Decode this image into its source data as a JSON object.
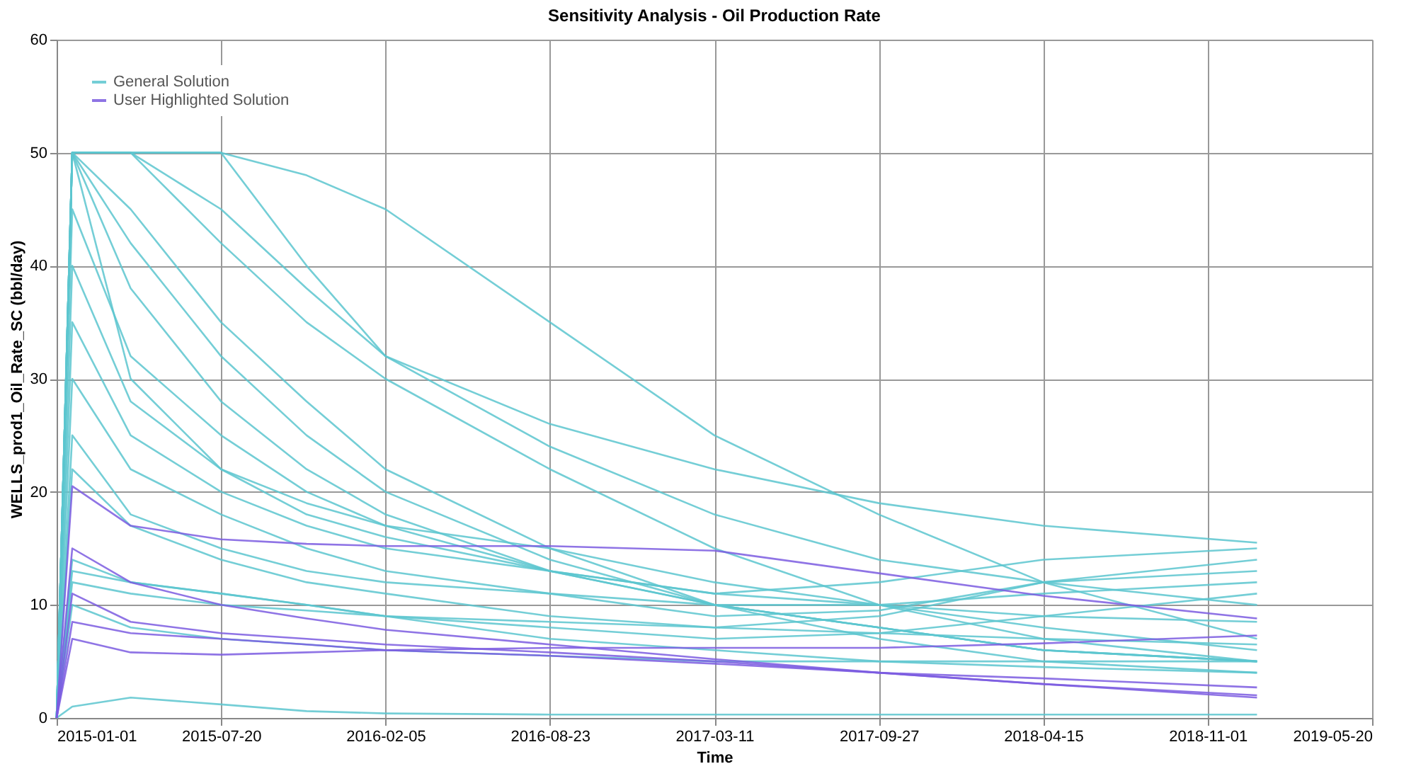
{
  "chart_data": {
    "type": "line",
    "title": "Sensitivity Analysis - Oil Production Rate",
    "xlabel": "Time",
    "ylabel": "WELLS_prod1_Oil_Rate_SC (bbl/day)",
    "x": [
      "2015-01-01",
      "2015-01-20",
      "2015-04-01",
      "2015-07-20",
      "2015-11-01",
      "2016-02-05",
      "2016-08-23",
      "2017-03-11",
      "2017-09-27",
      "2018-04-15",
      "2018-12-31"
    ],
    "xlim": [
      "2015-01-01",
      "2019-05-20"
    ],
    "xticks": [
      "2015-01-01",
      "2015-07-20",
      "2016-02-05",
      "2016-08-23",
      "2017-03-11",
      "2017-09-27",
      "2018-04-15",
      "2018-11-01",
      "2019-05-20"
    ],
    "ylim": [
      0,
      60
    ],
    "yticks": [
      0,
      10,
      20,
      30,
      40,
      50,
      60
    ],
    "grid": true,
    "legend": "top left",
    "marker": "none",
    "line_style": "solid",
    "series": [
      {
        "name": "General Solution",
        "color": "#5cc6cf",
        "values": [
          0,
          50,
          50,
          50,
          48,
          45,
          35,
          25,
          18,
          12,
          7
        ]
      },
      {
        "color": "#5cc6cf",
        "values": [
          0,
          50,
          50,
          42,
          35,
          30,
          22,
          15,
          10,
          7,
          5
        ]
      },
      {
        "color": "#5cc6cf",
        "values": [
          0,
          50,
          45,
          35,
          28,
          22,
          15,
          10,
          7,
          5,
          4
        ]
      },
      {
        "color": "#5cc6cf",
        "values": [
          0,
          50,
          38,
          28,
          22,
          18,
          13,
          10,
          8,
          6,
          5
        ]
      },
      {
        "color": "#5cc6cf",
        "values": [
          0,
          50,
          30,
          22,
          18,
          16,
          13,
          11,
          10,
          9,
          8.5
        ]
      },
      {
        "color": "#5cc6cf",
        "values": [
          0,
          45,
          32,
          25,
          20,
          17,
          13,
          10,
          8,
          6,
          5
        ]
      },
      {
        "color": "#5cc6cf",
        "values": [
          0,
          40,
          28,
          22,
          19,
          17,
          15,
          12,
          10,
          8,
          6
        ]
      },
      {
        "color": "#5cc6cf",
        "values": [
          0,
          50,
          50,
          50,
          40,
          32,
          24,
          18,
          14,
          12,
          10
        ]
      },
      {
        "color": "#5cc6cf",
        "values": [
          0,
          50,
          50,
          45,
          38,
          32,
          26,
          22,
          19,
          17,
          15.5
        ]
      },
      {
        "color": "#5cc6cf",
        "values": [
          0,
          35,
          25,
          20,
          17,
          15,
          13,
          11,
          12,
          14,
          15
        ]
      },
      {
        "color": "#5cc6cf",
        "values": [
          0,
          30,
          22,
          18,
          15,
          13,
          11,
          9,
          9.5,
          12,
          13
        ]
      },
      {
        "color": "#5cc6cf",
        "values": [
          0,
          25,
          18,
          15,
          13,
          12,
          11,
          10,
          10,
          11,
          12
        ]
      },
      {
        "color": "#5cc6cf",
        "values": [
          0,
          13,
          12,
          11,
          10,
          9,
          8,
          7,
          7.5,
          9,
          11
        ]
      },
      {
        "color": "#5cc6cf",
        "values": [
          0,
          12,
          11,
          10,
          9.5,
          9,
          8.5,
          8,
          7.5,
          7,
          6.5
        ]
      },
      {
        "color": "#5cc6cf",
        "values": [
          0,
          10,
          8,
          7,
          6.5,
          6,
          5.5,
          5,
          5,
          5,
          5
        ]
      },
      {
        "color": "#5cc6cf",
        "values": [
          0,
          14,
          12,
          11,
          10,
          9,
          7,
          6,
          5,
          4.5,
          4
        ]
      },
      {
        "color": "#5cc6cf",
        "values": [
          0,
          50,
          42,
          32,
          25,
          20,
          14,
          10,
          8,
          6,
          5
        ]
      },
      {
        "color": "#5cc6cf",
        "values": [
          0,
          22,
          17,
          14,
          12,
          11,
          9,
          8,
          9,
          12,
          14
        ]
      },
      {
        "color": "#5cc6cf",
        "values": [
          0,
          1,
          1.8,
          1.2,
          0.6,
          0.4,
          0.3,
          0.3,
          0.3,
          0.3,
          0.3
        ]
      },
      {
        "name": "User Highlighted Solution",
        "color": "#7b5ce0",
        "values": [
          0,
          20.5,
          17,
          15.8,
          15.4,
          15.2,
          15.2,
          14.8,
          12.8,
          10.8,
          8.8
        ]
      },
      {
        "color": "#7b5ce0",
        "values": [
          0,
          15,
          12,
          10,
          8.8,
          7.8,
          6.5,
          5.2,
          4,
          3,
          2
        ]
      },
      {
        "color": "#7b5ce0",
        "values": [
          0,
          11,
          8.5,
          7.5,
          7,
          6.5,
          5.8,
          5,
          4,
          3,
          1.8
        ]
      },
      {
        "color": "#7b5ce0",
        "values": [
          0,
          7,
          5.8,
          5.6,
          5.8,
          6,
          6.2,
          6.2,
          6.2,
          6.6,
          7.3
        ]
      },
      {
        "color": "#7b5ce0",
        "values": [
          0,
          8.5,
          7.5,
          7,
          6.5,
          6,
          5.5,
          4.8,
          4,
          3.5,
          2.7
        ]
      }
    ]
  }
}
